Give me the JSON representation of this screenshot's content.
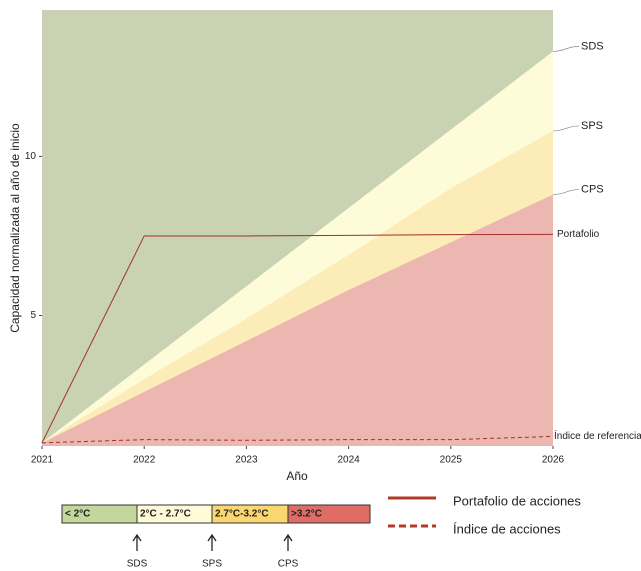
{
  "chart_data": {
    "type": "area",
    "x_label": "Año",
    "y_label": "Capacidad normalizada al año de inicio",
    "x": [
      2021,
      2022,
      2023,
      2024,
      2025,
      2026
    ],
    "xlim": [
      2021,
      2026
    ],
    "xticks": [
      2021,
      2022,
      2023,
      2024,
      2025,
      2026
    ],
    "ylim": [
      0.9,
      14.6
    ],
    "yticks": [
      5,
      10
    ],
    "background_color": "#c9d3b4",
    "series": [
      {
        "name": "SDS",
        "style": "area",
        "color": "#fefbd8",
        "values": [
          1,
          3.46,
          5.92,
          8.38,
          10.84,
          13.3
        ]
      },
      {
        "name": "SPS",
        "style": "area",
        "color": "#fbecb8",
        "values": [
          1,
          3.0,
          4.9,
          6.9,
          9.0,
          10.8
        ]
      },
      {
        "name": "CPS",
        "style": "area",
        "color": "#ecb7b1",
        "values": [
          1,
          2.6,
          4.2,
          5.8,
          7.3,
          8.8
        ]
      },
      {
        "name": "Portafolio",
        "style": "solid",
        "color": "#a3302c",
        "values": [
          1,
          7.5,
          7.5,
          7.52,
          7.54,
          7.55
        ]
      },
      {
        "name": "Índice de referencia",
        "style": "dashed",
        "color": "#a3302c",
        "values": [
          1,
          1.1,
          1.08,
          1.1,
          1.1,
          1.2
        ]
      }
    ],
    "temperature_bands": [
      {
        "label": "< 2°C",
        "color": "#c3d69b"
      },
      {
        "label": "2°C - 2.7°C",
        "color": "#fefbd8"
      },
      {
        "label": "2.7°C-3.2°C",
        "color": "#fad771"
      },
      {
        "label": ">3.2°C",
        "color": "#e06c66"
      }
    ],
    "line_legend": [
      {
        "label": "Portafolio de acciones",
        "style": "solid",
        "color": "#b23a26"
      },
      {
        "label": "Índice de acciones",
        "style": "dashed",
        "color": "#b23a26"
      }
    ]
  }
}
